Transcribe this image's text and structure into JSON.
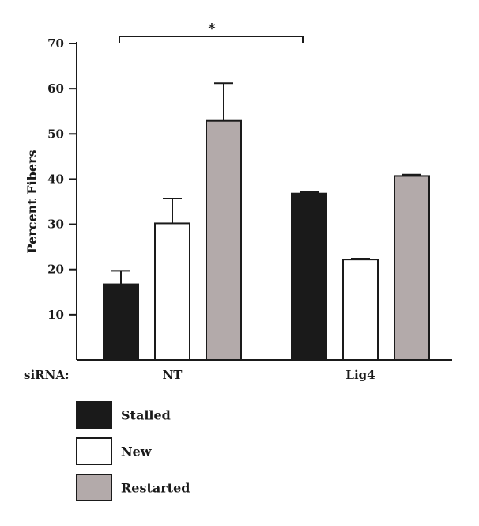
{
  "chart_data": {
    "type": "bar",
    "title": "",
    "xlabel": "",
    "ylabel": "Percent Fibers",
    "ylim": [
      0,
      70
    ],
    "yticks": [
      10,
      20,
      30,
      40,
      50,
      60,
      70
    ],
    "group_axis_label": "siRNA:",
    "categories": [
      "NT",
      "Lig4"
    ],
    "series": [
      {
        "name": "Stalled",
        "values": [
          16.7,
          36.8
        ],
        "errors": [
          3.0,
          0.3
        ],
        "color": "#1a1a1a"
      },
      {
        "name": "New",
        "values": [
          30.2,
          22.2
        ],
        "errors": [
          5.5,
          0.2
        ],
        "color": "#ffffff"
      },
      {
        "name": "Restarted",
        "values": [
          52.9,
          40.7
        ],
        "errors": [
          8.3,
          0.3
        ],
        "color": "#b3aaaa"
      }
    ],
    "significance": {
      "label": "*",
      "from": [
        "NT",
        "Stalled"
      ],
      "to": [
        "Lig4",
        "Stalled"
      ]
    },
    "legend_position": "bottom-left",
    "grid": false
  }
}
